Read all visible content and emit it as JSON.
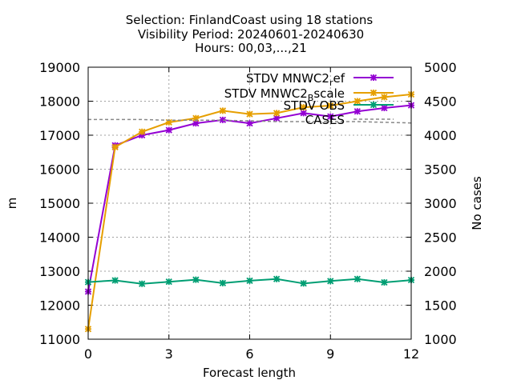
{
  "chart_data": {
    "type": "line",
    "title_lines": [
      "Selection: FinlandCoast using    18 stations",
      "Visibility   Period: 20240601-20240630",
      "Hours: 00,03,...,21"
    ],
    "xlabel": "Forecast length",
    "ylabel": "m",
    "y2label": "No cases",
    "xlim": [
      0,
      12
    ],
    "ylim": [
      11000,
      19000
    ],
    "y2lim": [
      1000,
      5000
    ],
    "x_ticks": [
      0,
      3,
      6,
      9,
      12
    ],
    "y_ticks": [
      11000,
      12000,
      13000,
      14000,
      15000,
      16000,
      17000,
      18000,
      19000
    ],
    "y2_ticks": [
      1000,
      1500,
      2000,
      2500,
      3000,
      3500,
      4000,
      4500,
      5000
    ],
    "grid": true,
    "legend_position": "top-right",
    "series": [
      {
        "name": "STDV MNWC2_ref",
        "legend_main": "STDV MNWC2",
        "legend_sub": "r",
        "legend_tail": "ef",
        "color": "#9400d3",
        "axis": "y",
        "x": [
          0,
          1,
          2,
          3,
          4,
          5,
          6,
          7,
          8,
          9,
          10,
          11,
          12
        ],
        "values": [
          12400,
          16700,
          17000,
          17150,
          17350,
          17450,
          17350,
          17500,
          17650,
          17550,
          17700,
          17800,
          17880
        ]
      },
      {
        "name": "STDV MNWC2_Bscale",
        "legend_main": "STDV MNWC2",
        "legend_sub": "B",
        "legend_tail": "scale",
        "color": "#e69f00",
        "axis": "y",
        "x": [
          0,
          1,
          2,
          3,
          4,
          5,
          6,
          7,
          8,
          9,
          10,
          11,
          12
        ],
        "values": [
          11300,
          16650,
          17100,
          17380,
          17500,
          17720,
          17620,
          17650,
          17820,
          17870,
          18000,
          18120,
          18200
        ]
      },
      {
        "name": "STDV OBS",
        "legend_main": "STDV OBS",
        "legend_sub": "",
        "legend_tail": "",
        "color": "#009e73",
        "axis": "y",
        "x": [
          0,
          1,
          2,
          3,
          4,
          5,
          6,
          7,
          8,
          9,
          10,
          11,
          12
        ],
        "values": [
          12680,
          12730,
          12630,
          12690,
          12750,
          12650,
          12720,
          12770,
          12640,
          12710,
          12770,
          12670,
          12740
        ]
      },
      {
        "name": "CASES",
        "legend_main": "CASES",
        "legend_sub": "",
        "legend_tail": "",
        "color": "#888888",
        "axis": "y2",
        "x": [
          0,
          1,
          2,
          3,
          4,
          5,
          6,
          7,
          8,
          9,
          10,
          11,
          12
        ],
        "values": [
          4230,
          4230,
          4230,
          4220,
          4220,
          4220,
          4210,
          4200,
          4200,
          4200,
          4200,
          4190,
          4180
        ]
      }
    ]
  }
}
